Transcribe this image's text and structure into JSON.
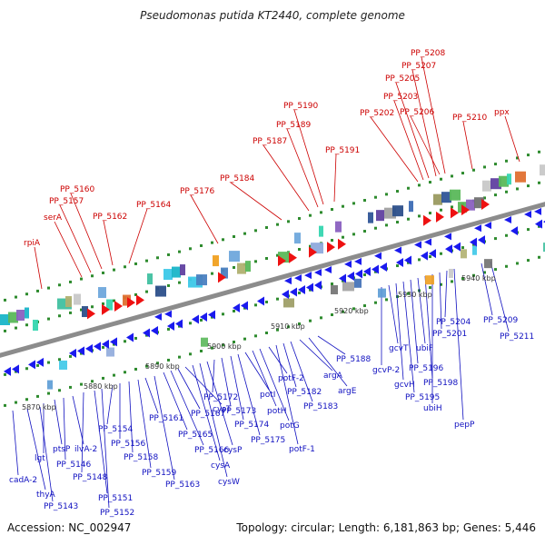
{
  "header": {
    "title": "Pseudomonas putida KT2440, complete genome"
  },
  "footer": {
    "accession": "Accession: NC_002947",
    "summary": "Topology: circular; Length: 6,181,863 bp; Genes: 5,446"
  },
  "colors": {
    "backbone": "#8c8c8c",
    "tick_dot": "#2e8b2e",
    "top_label": "#cc0000",
    "bottom_label": "#1010c0",
    "forward_arrow": "#ee1111",
    "reverse_arrow": "#1a1aee"
  },
  "scale_labels": [
    "5870 kbp",
    "5880 kbp",
    "5890 kbp",
    "5900 kbp",
    "5910 kbp",
    "5920 kbp",
    "5930 kbp",
    "5940 kbp"
  ],
  "top_labels": [
    "rpiA",
    "serA",
    "PP_5157",
    "PP_5160",
    "PP_5162",
    "PP_5164",
    "PP_5176",
    "PP_5184",
    "PP_5187",
    "PP_5189",
    "PP_5190",
    "PP_5191",
    "PP_5202",
    "PP_5203",
    "PP_5205",
    "PP_5207",
    "PP_5208",
    "PP_5206",
    "PP_5210",
    "ppx"
  ],
  "bottom_labels": [
    "cadA-2",
    "thyA",
    "PP_5143",
    "lgt",
    "ptsP",
    "PP_5146",
    "ilvA-2",
    "PP_5148",
    "PP_5151",
    "PP_5152",
    "PP_5154",
    "PP_5156",
    "PP_5158",
    "PP_5159",
    "PP_5161",
    "PP_5163",
    "PP_5165",
    "PP_5166",
    "PP_5167",
    "cysT",
    "cysA",
    "cysW",
    "cysP",
    "PP_5172",
    "PP_5173",
    "PP_5174",
    "PP_5175",
    "potI",
    "potH",
    "potG",
    "potF-2",
    "potF-1",
    "PP_5182",
    "PP_5183",
    "argA",
    "argE",
    "PP_5188",
    "gcvP-2",
    "gcvT",
    "gcvH",
    "PP_5195",
    "PP_5196",
    "ubiF",
    "PP_5198",
    "ubiH",
    "PP_5201",
    "PP_5204",
    "pepP",
    "PP_5209",
    "PP_5211"
  ]
}
